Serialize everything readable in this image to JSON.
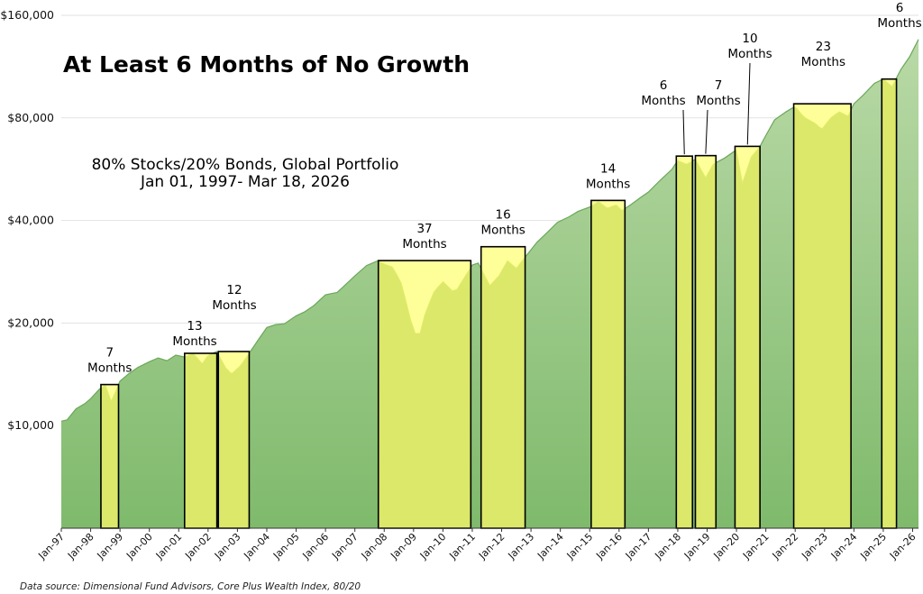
{
  "chart_data": {
    "type": "area",
    "title": "At Least 6 Months of No Growth",
    "subtitle_line1": "80% Stocks/20% Bonds, Global Portfolio",
    "subtitle_line2": "Jan 01, 1997- Mar 18, 2026",
    "source": "Data source: Dimensional Fund Advisors, Core Plus Wealth Index, 80/20",
    "y_scale": "log",
    "ylim": [
      5000,
      160000
    ],
    "y_ticks": [
      {
        "value": 10000,
        "label": "$10,000"
      },
      {
        "value": 20000,
        "label": "$20,000"
      },
      {
        "value": 40000,
        "label": "$40,000"
      },
      {
        "value": 80000,
        "label": "$80,000"
      },
      {
        "value": 160000,
        "label": "$160,000"
      }
    ],
    "xlim": [
      1997.0,
      2026.2
    ],
    "x_ticks": [
      {
        "year": 1997,
        "label": "Jan-97"
      },
      {
        "year": 1998,
        "label": "Jan-98"
      },
      {
        "year": 1999,
        "label": "Jan-99"
      },
      {
        "year": 2000,
        "label": "Jan-00"
      },
      {
        "year": 2001,
        "label": "Jan-01"
      },
      {
        "year": 2002,
        "label": "Jan-02"
      },
      {
        "year": 2003,
        "label": "Jan-03"
      },
      {
        "year": 2004,
        "label": "Jan-04"
      },
      {
        "year": 2005,
        "label": "Jan-05"
      },
      {
        "year": 2006,
        "label": "Jan-06"
      },
      {
        "year": 2007,
        "label": "Jan-07"
      },
      {
        "year": 2008,
        "label": "Jan-08"
      },
      {
        "year": 2009,
        "label": "Jan-09"
      },
      {
        "year": 2010,
        "label": "Jan-10"
      },
      {
        "year": 2011,
        "label": "Jan-11"
      },
      {
        "year": 2012,
        "label": "Jan-12"
      },
      {
        "year": 2013,
        "label": "Jan-13"
      },
      {
        "year": 2014,
        "label": "Jan-14"
      },
      {
        "year": 2015,
        "label": "Jan-15"
      },
      {
        "year": 2016,
        "label": "Jan-16"
      },
      {
        "year": 2017,
        "label": "Jan-17"
      },
      {
        "year": 2018,
        "label": "Jan-18"
      },
      {
        "year": 2019,
        "label": "Jan-19"
      },
      {
        "year": 2020,
        "label": "Jan-20"
      },
      {
        "year": 2021,
        "label": "Jan-21"
      },
      {
        "year": 2022,
        "label": "Jan-22"
      },
      {
        "year": 2023,
        "label": "Jan-23"
      },
      {
        "year": 2024,
        "label": "Jan-24"
      },
      {
        "year": 2025,
        "label": "Jan-25"
      },
      {
        "year": 2026,
        "label": "Jan-26"
      }
    ],
    "series": [
      {
        "points": [
          [
            1997.0,
            10300
          ],
          [
            1997.2,
            10400
          ],
          [
            1997.5,
            11200
          ],
          [
            1997.8,
            11600
          ],
          [
            1998.0,
            12000
          ],
          [
            1998.3,
            12800
          ],
          [
            1998.5,
            13200
          ],
          [
            1998.7,
            11800
          ],
          [
            1999.0,
            13500
          ],
          [
            1999.3,
            14200
          ],
          [
            1999.6,
            14800
          ],
          [
            2000.0,
            15400
          ],
          [
            2000.3,
            15800
          ],
          [
            2000.6,
            15500
          ],
          [
            2000.9,
            16100
          ],
          [
            2001.2,
            15900
          ],
          [
            2001.5,
            16300
          ],
          [
            2001.8,
            15200
          ],
          [
            2002.0,
            16100
          ],
          [
            2002.3,
            16500
          ],
          [
            2002.6,
            14800
          ],
          [
            2002.8,
            14200
          ],
          [
            2003.1,
            15000
          ],
          [
            2003.4,
            16300
          ],
          [
            2003.7,
            17800
          ],
          [
            2004.0,
            19400
          ],
          [
            2004.3,
            19800
          ],
          [
            2004.6,
            19900
          ],
          [
            2005.0,
            21000
          ],
          [
            2005.3,
            21600
          ],
          [
            2005.6,
            22500
          ],
          [
            2006.0,
            24200
          ],
          [
            2006.4,
            24600
          ],
          [
            2006.8,
            26500
          ],
          [
            2007.0,
            27500
          ],
          [
            2007.4,
            29500
          ],
          [
            2007.8,
            30500
          ],
          [
            2008.0,
            29800
          ],
          [
            2008.3,
            29200
          ],
          [
            2008.6,
            26000
          ],
          [
            2008.9,
            20500
          ],
          [
            2009.15,
            17700
          ],
          [
            2009.4,
            21500
          ],
          [
            2009.7,
            24800
          ],
          [
            2010.0,
            26500
          ],
          [
            2010.4,
            24500
          ],
          [
            2010.7,
            27000
          ],
          [
            2011.0,
            29600
          ],
          [
            2011.2,
            30000
          ],
          [
            2011.6,
            25800
          ],
          [
            2011.9,
            27500
          ],
          [
            2012.2,
            30500
          ],
          [
            2012.5,
            29000
          ],
          [
            2012.9,
            32000
          ],
          [
            2013.2,
            34500
          ],
          [
            2013.5,
            36500
          ],
          [
            2013.9,
            39500
          ],
          [
            2014.3,
            41000
          ],
          [
            2014.6,
            42500
          ],
          [
            2015.0,
            43800
          ],
          [
            2015.3,
            45500
          ],
          [
            2015.6,
            43500
          ],
          [
            2015.9,
            44500
          ],
          [
            2016.1,
            42800
          ],
          [
            2016.4,
            44500
          ],
          [
            2016.7,
            46500
          ],
          [
            2017.0,
            48500
          ],
          [
            2017.4,
            52500
          ],
          [
            2017.8,
            56500
          ],
          [
            2018.0,
            60000
          ],
          [
            2018.3,
            58500
          ],
          [
            2018.6,
            60500
          ],
          [
            2018.95,
            53500
          ],
          [
            2019.2,
            58500
          ],
          [
            2019.6,
            61000
          ],
          [
            2020.0,
            64500
          ],
          [
            2020.2,
            51500
          ],
          [
            2020.5,
            61500
          ],
          [
            2020.8,
            66000
          ],
          [
            2021.0,
            71000
          ],
          [
            2021.3,
            79000
          ],
          [
            2021.7,
            83500
          ],
          [
            2022.0,
            86500
          ],
          [
            2022.3,
            80500
          ],
          [
            2022.7,
            77000
          ],
          [
            2022.9,
            74000
          ],
          [
            2023.2,
            80000
          ],
          [
            2023.5,
            83500
          ],
          [
            2023.8,
            81000
          ],
          [
            2024.0,
            88000
          ],
          [
            2024.3,
            93000
          ],
          [
            2024.7,
            101000
          ],
          [
            2025.0,
            104000
          ],
          [
            2025.3,
            99000
          ],
          [
            2025.6,
            111000
          ],
          [
            2025.9,
            121000
          ],
          [
            2026.2,
            136000
          ]
        ]
      }
    ],
    "periods": [
      {
        "start": 1998.35,
        "end": 1998.95,
        "value": 13200,
        "label_num": "7",
        "label_word": "Months"
      },
      {
        "start": 2001.2,
        "end": 2002.3,
        "value": 16300,
        "label_num": "13",
        "label_word": "Months"
      },
      {
        "start": 2002.35,
        "end": 2003.4,
        "value": 16500,
        "label_num": "12",
        "label_word": "Months"
      },
      {
        "start": 2007.8,
        "end": 2010.95,
        "value": 30500,
        "label_num": "37",
        "label_word": "Months"
      },
      {
        "start": 2011.3,
        "end": 2012.8,
        "value": 33500,
        "label_num": "16",
        "label_word": "Months"
      },
      {
        "start": 2015.05,
        "end": 2016.2,
        "value": 45800,
        "label_num": "14",
        "label_word": "Months"
      },
      {
        "start": 2017.95,
        "end": 2018.5,
        "value": 61800,
        "label_num": "6",
        "label_word": "Months"
      },
      {
        "start": 2018.6,
        "end": 2019.3,
        "value": 62000,
        "label_num": "7",
        "label_word": "Months"
      },
      {
        "start": 2019.95,
        "end": 2020.8,
        "value": 66000,
        "label_num": "10",
        "label_word": "Months"
      },
      {
        "start": 2021.95,
        "end": 2023.9,
        "value": 88000,
        "label_num": "23",
        "label_word": "Months"
      },
      {
        "start": 2024.95,
        "end": 2025.45,
        "value": 104000,
        "label_num": "6",
        "label_word": "Months"
      }
    ],
    "colors": {
      "area_top": "#b9d9a6",
      "area_bottom": "#7fba6c",
      "area_line": "#6aa85a",
      "period_fill": "#dbe86a",
      "dip_fill": "#ffff99",
      "period_border": "#000000",
      "grid": "#e2e2e2"
    }
  }
}
